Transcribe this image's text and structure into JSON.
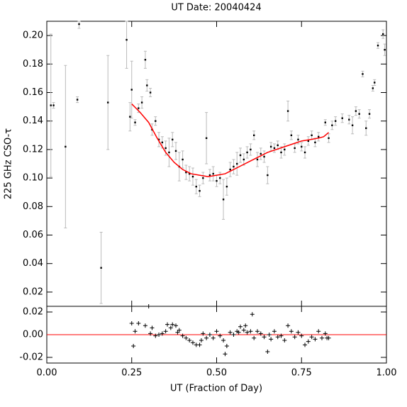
{
  "chart_data": [
    {
      "type": "scatter",
      "title": "UT Date: 20040424",
      "y_label": "225 GHz CSO-τ",
      "xlim": [
        0,
        1
      ],
      "ylim": [
        0.01,
        0.21
      ],
      "yticks": [
        0.02,
        0.04,
        0.06,
        0.08,
        {
          "value": 0.1,
          "label": "0.10"
        },
        0.12,
        0.14,
        0.16,
        0.18,
        {
          "value": 0.2,
          "label": "0.20"
        }
      ],
      "series": [
        {
          "type": "errorbar",
          "color": "#000000",
          "error_color": "#bbbbbb",
          "x": [
            0.012,
            0.02,
            0.055,
            0.095,
            0.09,
            0.16,
            0.18,
            0.235,
            0.245,
            0.25,
            0.26,
            0.27,
            0.28,
            0.29,
            0.295,
            0.305,
            0.31,
            0.32,
            0.33,
            0.34,
            0.35,
            0.36,
            0.37,
            0.38,
            0.39,
            0.4,
            0.41,
            0.42,
            0.43,
            0.44,
            0.45,
            0.46,
            0.47,
            0.48,
            0.49,
            0.5,
            0.51,
            0.52,
            0.53,
            0.54,
            0.55,
            0.56,
            0.57,
            0.58,
            0.59,
            0.6,
            0.61,
            0.62,
            0.63,
            0.64,
            0.65,
            0.66,
            0.67,
            0.68,
            0.69,
            0.7,
            0.71,
            0.72,
            0.73,
            0.74,
            0.75,
            0.76,
            0.77,
            0.78,
            0.79,
            0.8,
            0.82,
            0.83,
            0.84,
            0.85,
            0.87,
            0.89,
            0.9,
            0.91,
            0.92,
            0.93,
            0.94,
            0.95,
            0.96,
            0.965,
            0.975,
            0.99,
            0.995
          ],
          "values": [
            0.151,
            0.151,
            0.122,
            0.208,
            0.155,
            0.037,
            0.153,
            0.197,
            0.143,
            0.162,
            0.139,
            0.149,
            0.153,
            0.183,
            0.165,
            0.16,
            0.134,
            0.14,
            0.127,
            0.125,
            0.121,
            0.118,
            0.127,
            0.119,
            0.108,
            0.113,
            0.104,
            0.103,
            0.101,
            0.094,
            0.091,
            0.1,
            0.128,
            0.102,
            0.103,
            0.098,
            0.1,
            0.085,
            0.094,
            0.106,
            0.108,
            0.11,
            0.116,
            0.113,
            0.118,
            0.12,
            0.13,
            0.113,
            0.117,
            0.115,
            0.102,
            0.122,
            0.121,
            0.123,
            0.118,
            0.12,
            0.147,
            0.13,
            0.121,
            0.127,
            0.122,
            0.118,
            0.126,
            0.13,
            0.125,
            0.129,
            0.139,
            0.128,
            0.137,
            0.14,
            0.142,
            0.141,
            0.137,
            0.147,
            0.145,
            0.173,
            0.135,
            0.145,
            0.163,
            0.167,
            0.193,
            0.201,
            0.19
          ],
          "errors": [
            0.05,
            0.002,
            0.057,
            0.003,
            0.002,
            0.025,
            0.033,
            0.02,
            0.01,
            0.02,
            0.002,
            0.003,
            0.004,
            0.006,
            0.004,
            0.003,
            0.004,
            0.003,
            0.005,
            0.004,
            0.005,
            0.01,
            0.005,
            0.006,
            0.01,
            0.006,
            0.005,
            0.005,
            0.006,
            0.005,
            0.004,
            0.004,
            0.018,
            0.004,
            0.005,
            0.004,
            0.004,
            0.014,
            0.006,
            0.005,
            0.005,
            0.008,
            0.005,
            0.004,
            0.004,
            0.004,
            0.003,
            0.005,
            0.004,
            0.004,
            0.006,
            0.003,
            0.003,
            0.003,
            0.004,
            0.004,
            0.007,
            0.003,
            0.003,
            0.003,
            0.003,
            0.004,
            0.003,
            0.003,
            0.003,
            0.003,
            0.002,
            0.003,
            0.003,
            0.003,
            0.003,
            0.003,
            0.006,
            0.003,
            0.003,
            0.002,
            0.005,
            0.003,
            0.002,
            0.002,
            0.002,
            0.003,
            0.004
          ]
        },
        {
          "type": "line",
          "color": "#ff0000",
          "x": [
            0.25,
            0.275,
            0.3,
            0.325,
            0.35,
            0.375,
            0.4,
            0.425,
            0.45,
            0.475,
            0.5,
            0.525,
            0.55,
            0.575,
            0.6,
            0.625,
            0.65,
            0.675,
            0.7,
            0.725,
            0.75,
            0.775,
            0.8,
            0.815,
            0.83
          ],
          "values": [
            0.152,
            0.146,
            0.139,
            0.128,
            0.118,
            0.111,
            0.106,
            0.103,
            0.102,
            0.101,
            0.102,
            0.103,
            0.106,
            0.109,
            0.112,
            0.115,
            0.118,
            0.12,
            0.122,
            0.124,
            0.126,
            0.127,
            0.128,
            0.129,
            0.132
          ]
        }
      ]
    },
    {
      "type": "scatter",
      "x_label": "UT (Fraction of Day)",
      "xlim": [
        0,
        1
      ],
      "xticks": [
        {
          "value": 0,
          "label": "0.00"
        },
        0.25,
        {
          "value": 0.5,
          "label": "0.50"
        },
        0.75,
        {
          "value": 1,
          "label": "1.00"
        }
      ],
      "ylim": [
        -0.025,
        0.025
      ],
      "yticks": [
        -0.02,
        {
          "value": 0,
          "label": "0.00"
        },
        0.02
      ],
      "zero_line": {
        "value": 0,
        "color": "#ff0000"
      },
      "series": [
        {
          "type": "cross",
          "color": "#000000",
          "x": [
            0.25,
            0.255,
            0.26,
            0.27,
            0.29,
            0.3,
            0.305,
            0.31,
            0.32,
            0.33,
            0.34,
            0.35,
            0.355,
            0.365,
            0.37,
            0.38,
            0.385,
            0.39,
            0.4,
            0.41,
            0.42,
            0.43,
            0.44,
            0.45,
            0.455,
            0.46,
            0.47,
            0.48,
            0.49,
            0.5,
            0.51,
            0.52,
            0.525,
            0.53,
            0.54,
            0.55,
            0.56,
            0.565,
            0.57,
            0.58,
            0.585,
            0.59,
            0.6,
            0.605,
            0.61,
            0.62,
            0.63,
            0.64,
            0.65,
            0.655,
            0.66,
            0.67,
            0.68,
            0.69,
            0.7,
            0.71,
            0.72,
            0.73,
            0.74,
            0.75,
            0.76,
            0.77,
            0.78,
            0.79,
            0.8,
            0.81,
            0.82,
            0.825,
            0.83
          ],
          "values": [
            0.01,
            -0.01,
            0.003,
            0.01,
            0.008,
            0.025,
            0.001,
            0.006,
            -0.001,
            0.0,
            0.001,
            0.003,
            0.009,
            0.006,
            0.009,
            0.008,
            0.002,
            0.004,
            -0.001,
            -0.003,
            -0.005,
            -0.007,
            -0.009,
            -0.009,
            -0.005,
            0.001,
            -0.003,
            0.0,
            -0.003,
            0.003,
            -0.001,
            -0.005,
            -0.017,
            -0.01,
            0.002,
            0.0,
            0.003,
            0.002,
            0.007,
            0.004,
            0.008,
            0.002,
            0.003,
            0.018,
            -0.003,
            0.003,
            0.001,
            -0.002,
            -0.015,
            0.0,
            -0.004,
            0.003,
            -0.002,
            -0.001,
            -0.005,
            0.008,
            0.003,
            -0.002,
            0.002,
            -0.001,
            -0.009,
            -0.006,
            -0.002,
            -0.004,
            0.003,
            -0.003,
            0.001,
            -0.003,
            -0.003
          ]
        }
      ]
    }
  ]
}
